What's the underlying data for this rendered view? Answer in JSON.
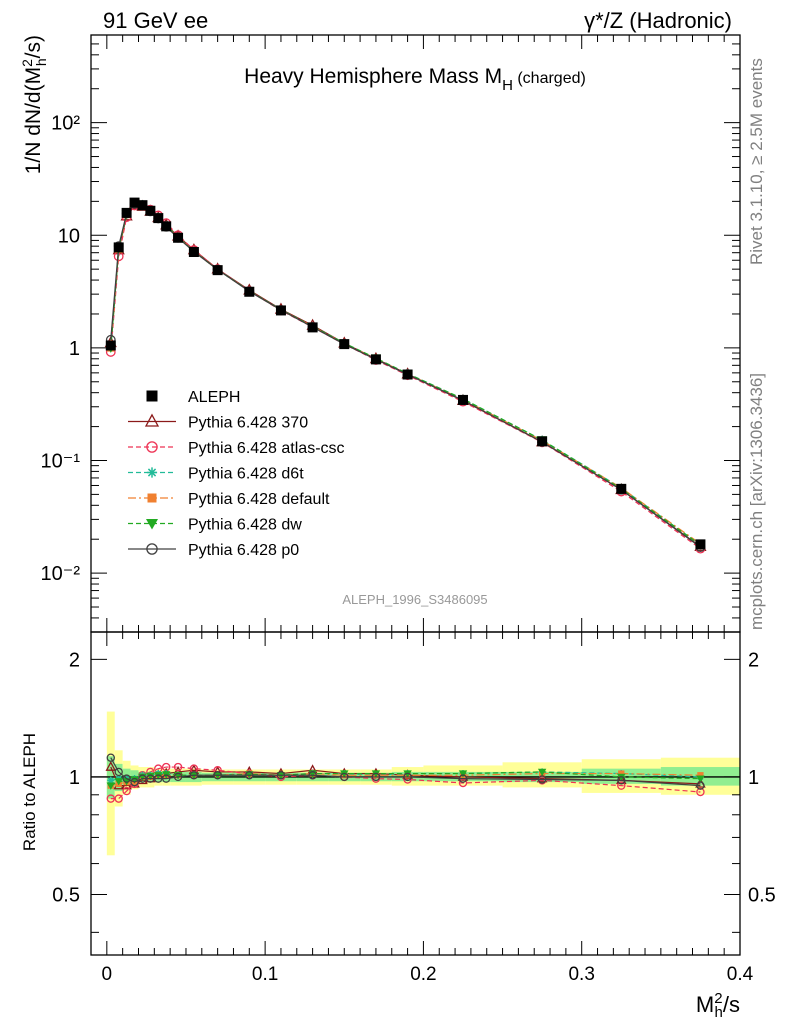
{
  "header": {
    "left": "91 GeV ee",
    "right": "γ*/Z (Hadronic)"
  },
  "side_texts": {
    "rivet": "Rivet 3.1.10, ≥ 2.5M events",
    "mcplots": "mcplots.cern.ch [arXiv:1306.3436]"
  },
  "chart_data": [
    {
      "type": "line",
      "title": "Heavy Hemisphere Mass M",
      "title_sub": "H",
      "title_suffix": " (charged)",
      "ylabel": "1/N dN/d(M²h/s)",
      "yscale": "log",
      "ylim": [
        0.003,
        600
      ],
      "xlim": [
        -0.01,
        0.4
      ],
      "analysis": "ALEPH_1996_S3486095",
      "yticks": [
        {
          "value": 0.01,
          "label": "10⁻²"
        },
        {
          "value": 0.1,
          "label": "10⁻¹"
        },
        {
          "value": 1,
          "label": "1"
        },
        {
          "value": 10,
          "label": "10"
        },
        {
          "value": 100,
          "label": "10²"
        }
      ],
      "x": [
        0.0025,
        0.0075,
        0.0125,
        0.0175,
        0.0225,
        0.0275,
        0.0325,
        0.0375,
        0.045,
        0.055,
        0.07,
        0.09,
        0.11,
        0.13,
        0.15,
        0.17,
        0.19,
        0.225,
        0.275,
        0.325,
        0.375
      ],
      "series": [
        {
          "name": "ALEPH",
          "color": "#000000",
          "marker": "square-filled",
          "dash": "none",
          "values": [
            1.05,
            7.8,
            15.8,
            19.5,
            18.5,
            16.5,
            14.2,
            12.0,
            9.5,
            7.1,
            4.9,
            3.15,
            2.15,
            1.52,
            1.08,
            0.79,
            0.58,
            0.345,
            0.148,
            0.056,
            0.018
          ]
        },
        {
          "name": "Pythia 6.428 370",
          "color": "#8b1a1a",
          "marker": "triangle-open",
          "dash": "none",
          "values": [
            1.11,
            7.4,
            14.8,
            18.6,
            18.0,
            16.3,
            14.3,
            12.3,
            9.8,
            7.4,
            5.0,
            3.25,
            2.2,
            1.58,
            1.1,
            0.8,
            0.585,
            0.34,
            0.146,
            0.055,
            0.0172
          ]
        },
        {
          "name": "Pythia 6.428 atlas-csc",
          "color": "#ee3355",
          "marker": "circle-open",
          "dash": "5,3",
          "values": [
            0.92,
            6.5,
            14.5,
            18.4,
            18.5,
            16.9,
            15.0,
            12.8,
            10.0,
            7.4,
            5.0,
            3.2,
            2.15,
            1.53,
            1.08,
            0.78,
            0.572,
            0.333,
            0.145,
            0.053,
            0.0165
          ]
        },
        {
          "name": "Pythia 6.428 d6t",
          "color": "#22bb99",
          "marker": "star",
          "dash": "5,3",
          "values": [
            1.03,
            7.7,
            15.6,
            19.3,
            18.8,
            16.7,
            14.5,
            12.2,
            9.6,
            7.2,
            4.95,
            3.2,
            2.18,
            1.55,
            1.1,
            0.8,
            0.592,
            0.352,
            0.152,
            0.057,
            0.0178
          ]
        },
        {
          "name": "Pythia 6.428 default",
          "color": "#f08030",
          "marker": "square-filled-small",
          "dash": "8,3,2,3",
          "values": [
            1.0,
            7.5,
            15.3,
            19.0,
            18.5,
            16.5,
            14.3,
            12.1,
            9.6,
            7.2,
            4.95,
            3.2,
            2.17,
            1.55,
            1.09,
            0.8,
            0.585,
            0.348,
            0.15,
            0.057,
            0.0182
          ]
        },
        {
          "name": "Pythia 6.428 dw",
          "color": "#22aa22",
          "marker": "triangle-down-filled",
          "dash": "5,3",
          "values": [
            1.0,
            7.6,
            15.4,
            19.2,
            18.6,
            16.6,
            14.4,
            12.2,
            9.6,
            7.2,
            4.95,
            3.2,
            2.18,
            1.55,
            1.1,
            0.81,
            0.59,
            0.352,
            0.152,
            0.056,
            0.0178
          ]
        },
        {
          "name": "Pythia 6.428 p0",
          "color": "#404040",
          "marker": "circle-open",
          "dash": "none",
          "values": [
            1.18,
            8.0,
            15.6,
            19.0,
            18.3,
            16.3,
            14.1,
            11.9,
            9.5,
            7.15,
            4.95,
            3.18,
            2.17,
            1.53,
            1.08,
            0.79,
            0.58,
            0.342,
            0.146,
            0.055,
            0.017
          ]
        }
      ]
    },
    {
      "type": "line",
      "ylabel": "Ratio to ALEPH",
      "xlabel": "M²h/s",
      "xlim": [
        -0.01,
        0.4
      ],
      "ylim": [
        0.35,
        2.35
      ],
      "yscale": "log",
      "yticks": [
        {
          "value": 0.5,
          "label": "0.5"
        },
        {
          "value": 1,
          "label": "1"
        },
        {
          "value": 2,
          "label": "2"
        }
      ],
      "xticks": [
        {
          "value": 0,
          "label": "0"
        },
        {
          "value": 0.1,
          "label": "0.1"
        },
        {
          "value": 0.2,
          "label": "0.2"
        },
        {
          "value": 0.3,
          "label": "0.3"
        },
        {
          "value": 0.4,
          "label": "0.4"
        }
      ],
      "bins": [
        {
          "lo": 0.0,
          "hi": 0.005,
          "band_stat": [
            0.88,
            1.13
          ],
          "band_tot": [
            0.63,
            1.47
          ]
        },
        {
          "lo": 0.005,
          "hi": 0.01,
          "band_stat": [
            0.92,
            1.08
          ],
          "band_tot": [
            0.84,
            1.17
          ]
        },
        {
          "lo": 0.01,
          "hi": 0.015,
          "band_stat": [
            0.95,
            1.05
          ],
          "band_tot": [
            0.9,
            1.1
          ]
        },
        {
          "lo": 0.015,
          "hi": 0.02,
          "band_stat": [
            0.96,
            1.04
          ],
          "band_tot": [
            0.93,
            1.07
          ]
        },
        {
          "lo": 0.02,
          "hi": 0.025,
          "band_stat": [
            0.97,
            1.03
          ],
          "band_tot": [
            0.94,
            1.06
          ]
        },
        {
          "lo": 0.025,
          "hi": 0.03,
          "band_stat": [
            0.97,
            1.03
          ],
          "band_tot": [
            0.94,
            1.06
          ]
        },
        {
          "lo": 0.03,
          "hi": 0.035,
          "band_stat": [
            0.97,
            1.03
          ],
          "band_tot": [
            0.95,
            1.05
          ]
        },
        {
          "lo": 0.035,
          "hi": 0.04,
          "band_stat": [
            0.97,
            1.03
          ],
          "band_tot": [
            0.95,
            1.05
          ]
        },
        {
          "lo": 0.04,
          "hi": 0.05,
          "band_stat": [
            0.97,
            1.03
          ],
          "band_tot": [
            0.95,
            1.05
          ]
        },
        {
          "lo": 0.05,
          "hi": 0.06,
          "band_stat": [
            0.97,
            1.03
          ],
          "band_tot": [
            0.95,
            1.05
          ]
        },
        {
          "lo": 0.06,
          "hi": 0.08,
          "band_stat": [
            0.975,
            1.025
          ],
          "band_tot": [
            0.955,
            1.045
          ]
        },
        {
          "lo": 0.08,
          "hi": 0.1,
          "band_stat": [
            0.975,
            1.025
          ],
          "band_tot": [
            0.955,
            1.045
          ]
        },
        {
          "lo": 0.1,
          "hi": 0.12,
          "band_stat": [
            0.975,
            1.025
          ],
          "band_tot": [
            0.955,
            1.045
          ]
        },
        {
          "lo": 0.12,
          "hi": 0.14,
          "band_stat": [
            0.975,
            1.025
          ],
          "band_tot": [
            0.955,
            1.045
          ]
        },
        {
          "lo": 0.14,
          "hi": 0.16,
          "band_stat": [
            0.975,
            1.025
          ],
          "band_tot": [
            0.955,
            1.045
          ]
        },
        {
          "lo": 0.16,
          "hi": 0.18,
          "band_stat": [
            0.975,
            1.025
          ],
          "band_tot": [
            0.955,
            1.045
          ]
        },
        {
          "lo": 0.18,
          "hi": 0.2,
          "band_stat": [
            0.975,
            1.03
          ],
          "band_tot": [
            0.95,
            1.06
          ]
        },
        {
          "lo": 0.2,
          "hi": 0.25,
          "band_stat": [
            0.975,
            1.03
          ],
          "band_tot": [
            0.95,
            1.07
          ]
        },
        {
          "lo": 0.25,
          "hi": 0.3,
          "band_stat": [
            0.97,
            1.03
          ],
          "band_tot": [
            0.94,
            1.09
          ]
        },
        {
          "lo": 0.3,
          "hi": 0.35,
          "band_stat": [
            0.96,
            1.05
          ],
          "band_tot": [
            0.91,
            1.11
          ]
        },
        {
          "lo": 0.35,
          "hi": 0.4,
          "band_stat": [
            0.95,
            1.06
          ],
          "band_tot": [
            0.9,
            1.12
          ]
        }
      ],
      "series": [
        {
          "name": "Pythia 6.428 370",
          "color": "#8b1a1a",
          "marker": "triangle-open",
          "dash": "none",
          "values": [
            1.06,
            0.95,
            0.95,
            0.96,
            0.98,
            0.99,
            1.01,
            1.02,
            1.03,
            1.04,
            1.03,
            1.03,
            1.02,
            1.04,
            1.02,
            1.02,
            1.01,
            1.0,
            0.99,
            0.98,
            0.96
          ]
        },
        {
          "name": "Pythia 6.428 atlas-csc",
          "color": "#ee3355",
          "marker": "circle-open",
          "dash": "5,3",
          "values": [
            0.88,
            0.88,
            0.92,
            0.96,
            1.01,
            1.03,
            1.05,
            1.06,
            1.06,
            1.05,
            1.04,
            1.02,
            1.0,
            1.01,
            1.0,
            0.99,
            0.985,
            0.965,
            0.98,
            0.95,
            0.915
          ]
        },
        {
          "name": "Pythia 6.428 d6t",
          "color": "#22bb99",
          "marker": "star",
          "dash": "5,3",
          "values": [
            0.98,
            0.99,
            0.99,
            0.99,
            1.01,
            1.01,
            1.02,
            1.02,
            1.01,
            1.01,
            1.01,
            1.02,
            1.01,
            1.02,
            1.02,
            1.01,
            1.02,
            1.02,
            1.03,
            1.02,
            1.0
          ]
        },
        {
          "name": "Pythia 6.428 default",
          "color": "#f08030",
          "marker": "square-filled-small",
          "dash": "8,3,2,3",
          "values": [
            0.95,
            0.96,
            0.97,
            0.97,
            1.0,
            1.0,
            1.01,
            1.01,
            1.01,
            1.01,
            1.01,
            1.02,
            1.01,
            1.02,
            1.01,
            1.01,
            1.01,
            1.01,
            1.02,
            1.02,
            1.01
          ]
        },
        {
          "name": "Pythia 6.428 dw",
          "color": "#22aa22",
          "marker": "triangle-down-filled",
          "dash": "5,3",
          "values": [
            0.95,
            0.975,
            0.975,
            0.985,
            1.0,
            1.005,
            1.01,
            1.015,
            1.01,
            1.01,
            1.01,
            1.015,
            1.01,
            1.02,
            1.02,
            1.02,
            1.02,
            1.02,
            1.03,
            1.0,
            0.99
          ]
        },
        {
          "name": "Pythia 6.428 p0",
          "color": "#404040",
          "marker": "circle-open",
          "dash": "none",
          "values": [
            1.12,
            1.03,
            0.99,
            0.97,
            0.99,
            0.99,
            0.99,
            0.99,
            1.0,
            1.01,
            1.01,
            1.01,
            1.01,
            1.01,
            1.0,
            1.0,
            1.0,
            0.99,
            0.985,
            0.98,
            0.95
          ]
        }
      ]
    }
  ]
}
